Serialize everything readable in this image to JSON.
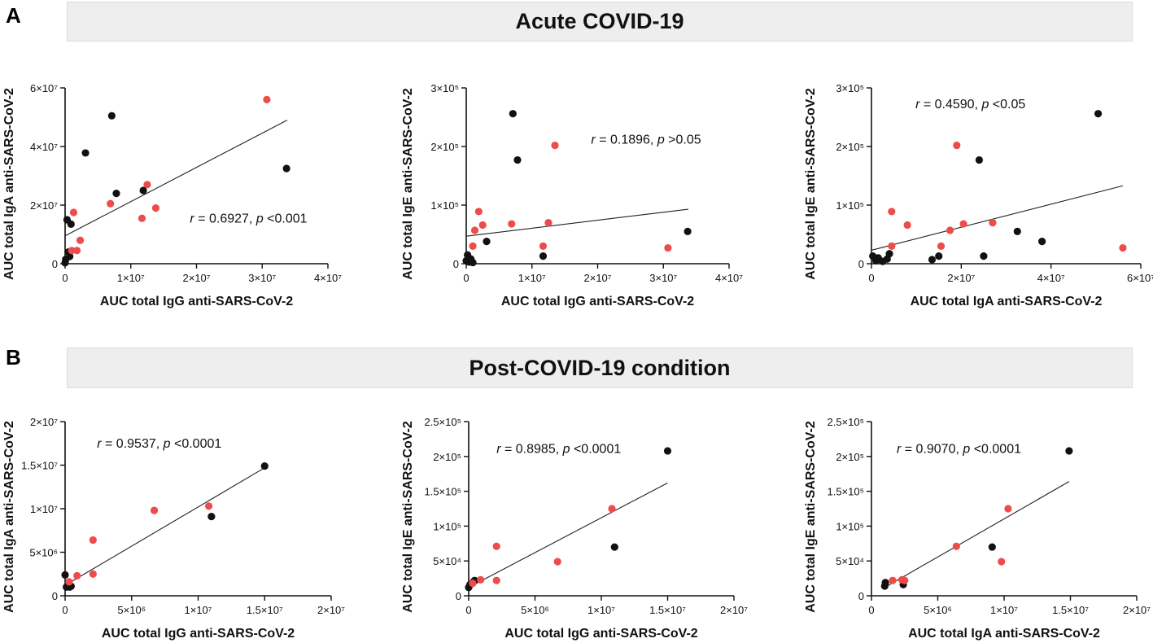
{
  "figure": {
    "panel_a_label": "A",
    "panel_b_label": "B",
    "panel_a_title": "Acute COVID-19",
    "panel_b_title": "Post-COVID-19 condition"
  },
  "colors": {
    "black": "#111111",
    "red": "#ee4b4b",
    "line": "#222222",
    "axis": "#111111"
  },
  "chart_data": [
    {
      "type": "scatter",
      "panel": "A",
      "xlabel": "AUC total IgG anti-SARS-CoV-2",
      "ylabel": "AUC total IgA anti-SARS-CoV-2",
      "xlim": [
        0,
        40000000
      ],
      "ylim": [
        0,
        60000000
      ],
      "xticks": [
        0,
        10000000,
        20000000,
        30000000,
        40000000
      ],
      "xtick_labels": [
        "0",
        "1×10⁷",
        "2×10⁷",
        "3×10⁷",
        "4×10⁷"
      ],
      "yticks": [
        0,
        20000000,
        40000000,
        60000000
      ],
      "ytick_labels": [
        "0",
        "2×10⁷",
        "4×10⁷",
        "6×10⁷"
      ],
      "annotation": "r = 0.6927, p <0.001",
      "annotation_at": [
        19000000,
        14000000
      ],
      "fit": [
        [
          0,
          9500000
        ],
        [
          33800000,
          49000000
        ]
      ],
      "series": [
        {
          "name": "black",
          "points": [
            [
              0,
              300000
            ],
            [
              100000,
              1500000
            ],
            [
              300000,
              15000000
            ],
            [
              500000,
              4000000
            ],
            [
              700000,
              2500000
            ],
            [
              900000,
              13500000
            ],
            [
              3100000,
              37800000
            ],
            [
              7100000,
              50500000
            ],
            [
              7800000,
              24000000
            ],
            [
              11900000,
              25000000
            ],
            [
              33700000,
              32500000
            ]
          ]
        },
        {
          "name": "red",
          "points": [
            [
              1300000,
              17500000
            ],
            [
              1000000,
              4500000
            ],
            [
              1800000,
              4500000
            ],
            [
              2300000,
              8000000
            ],
            [
              6900000,
              20500000
            ],
            [
              11700000,
              15500000
            ],
            [
              12500000,
              27000000
            ],
            [
              13800000,
              19000000
            ],
            [
              30700000,
              56000000
            ]
          ]
        }
      ]
    },
    {
      "type": "scatter",
      "panel": "A",
      "xlabel": "AUC total IgG anti-SARS-CoV-2",
      "ylabel": "AUC total IgE anti-SARS-CoV-2",
      "xlim": [
        0,
        40000000
      ],
      "ylim": [
        0,
        300000
      ],
      "xticks": [
        0,
        10000000,
        20000000,
        30000000,
        40000000
      ],
      "xtick_labels": [
        "0",
        "1×10⁷",
        "2×10⁷",
        "3×10⁷",
        "4×10⁷"
      ],
      "yticks": [
        0,
        100000,
        200000,
        300000
      ],
      "ytick_labels": [
        "0",
        "1×10⁵",
        "2×10⁵",
        "3×10⁵"
      ],
      "annotation": "r = 0.1896, p >0.05",
      "annotation_at": [
        19000000,
        205000
      ],
      "fit": [
        [
          0,
          47000.0
        ],
        [
          33800000,
          93000
        ]
      ],
      "series": [
        {
          "name": "black",
          "points": [
            [
              0,
              5000
            ],
            [
              200000,
              15000
            ],
            [
              400000,
              3000
            ],
            [
              700000,
              8000
            ],
            [
              1000000,
              2000
            ],
            [
              3100000,
              38000
            ],
            [
              7100000,
              256000
            ],
            [
              7800000,
              177000
            ],
            [
              11700000,
              13000
            ],
            [
              33700000,
              55000
            ]
          ]
        },
        {
          "name": "red",
          "points": [
            [
              1000000,
              30000
            ],
            [
              1300000,
              57000
            ],
            [
              1900000,
              89000
            ],
            [
              2500000,
              66000
            ],
            [
              6900000,
              68000
            ],
            [
              11700000,
              30000
            ],
            [
              12500000,
              70000
            ],
            [
              13500000,
              202000
            ],
            [
              30700000,
              27000
            ]
          ]
        }
      ]
    },
    {
      "type": "scatter",
      "panel": "A",
      "xlabel": "AUC total IgA anti-SARS-CoV-2",
      "ylabel": "AUC total IgE anti-SARS-CoV-2",
      "xlim": [
        0,
        60000000
      ],
      "ylim": [
        0,
        300000
      ],
      "xticks": [
        0,
        20000000,
        40000000,
        60000000
      ],
      "xtick_labels": [
        "0",
        "2×10⁷",
        "4×10⁷",
        "6×10⁷"
      ],
      "yticks": [
        0,
        100000,
        200000,
        300000
      ],
      "ytick_labels": [
        "0",
        "1×10⁵",
        "2×10⁵",
        "3×10⁵"
      ],
      "annotation": "r = 0.4590, p <0.05",
      "annotation_at": [
        9800000,
        265000
      ],
      "fit": [
        [
          0,
          23000
        ],
        [
          56000000,
          133000
        ]
      ],
      "series": [
        {
          "name": "black",
          "points": [
            [
              300000,
              13000
            ],
            [
              1000000,
              5000
            ],
            [
              1500000,
              10000
            ],
            [
              2500000,
              4000
            ],
            [
              3500000,
              8000
            ],
            [
              4000000,
              17000
            ],
            [
              13500000,
              7000
            ],
            [
              15000000,
              13000
            ],
            [
              24000000,
              177000
            ],
            [
              25000000,
              13000
            ],
            [
              32500000,
              55000
            ],
            [
              38000000,
              38000
            ],
            [
              50500000,
              256000
            ]
          ]
        },
        {
          "name": "red",
          "points": [
            [
              4500000,
              30000
            ],
            [
              4500000,
              89000
            ],
            [
              8000000,
              66000
            ],
            [
              15500000,
              30000
            ],
            [
              17500000,
              57000
            ],
            [
              19000000,
              202000
            ],
            [
              20500000,
              68000
            ],
            [
              27000000,
              70000
            ],
            [
              56000000,
              27000
            ]
          ]
        }
      ]
    },
    {
      "type": "scatter",
      "panel": "B",
      "xlabel": "AUC total IgG anti-SARS-CoV-2",
      "ylabel": "AUC total IgA anti-SARS-CoV-2",
      "xlim": [
        0,
        20000000
      ],
      "ylim": [
        0,
        20000000
      ],
      "xticks": [
        0,
        5000000,
        10000000,
        15000000,
        20000000
      ],
      "xtick_labels": [
        "0",
        "5×10⁶",
        "1×10⁷",
        "1.5×10⁷",
        "2×10⁷"
      ],
      "yticks": [
        0,
        5000000,
        10000000,
        15000000,
        20000000
      ],
      "ytick_labels": [
        "0",
        "5×10⁶",
        "1×10⁷",
        "1.5×10⁷",
        "2×10⁷"
      ],
      "annotation": "r = 0.9537, p <0.0001",
      "annotation_at": [
        2400000,
        17000000
      ],
      "fit": [
        [
          0,
          1200000
        ],
        [
          15000000,
          14700000
        ]
      ],
      "series": [
        {
          "name": "black",
          "points": [
            [
              0,
              2400000
            ],
            [
              100000,
              1000000
            ],
            [
              350000,
              1000000
            ],
            [
              450000,
              1100000
            ],
            [
              11000000,
              9100000
            ],
            [
              15000000,
              14900000
            ]
          ]
        },
        {
          "name": "red",
          "points": [
            [
              300000,
              1600000
            ],
            [
              900000,
              2300000
            ],
            [
              2100000,
              6400000
            ],
            [
              2100000,
              2500000
            ],
            [
              6700000,
              9800000
            ],
            [
              10800000,
              10300000
            ]
          ]
        }
      ]
    },
    {
      "type": "scatter",
      "panel": "B",
      "xlabel": "AUC total IgG anti-SARS-CoV-2",
      "ylabel": "AUC total IgE anti-SARS-CoV-2",
      "xlim": [
        0,
        20000000
      ],
      "ylim": [
        0,
        250000
      ],
      "xticks": [
        0,
        5000000,
        10000000,
        15000000,
        20000000
      ],
      "xtick_labels": [
        "0",
        "5×10⁶",
        "1×10⁷",
        "1.5×10⁷",
        "2×10⁷"
      ],
      "yticks": [
        0,
        50000,
        100000,
        150000,
        200000,
        250000
      ],
      "ytick_labels": [
        "0",
        "5×10⁴",
        "1×10⁵",
        "1.5×10⁵",
        "2×10⁵",
        "2.5×10⁵"
      ],
      "annotation": "r = 0.8985, p <0.0001",
      "annotation_at": [
        2100000,
        205000
      ],
      "fit": [
        [
          0,
          12000
        ],
        [
          15000000,
          162000
        ]
      ],
      "series": [
        {
          "name": "black",
          "points": [
            [
              0,
              12000
            ],
            [
              100000,
              16000
            ],
            [
              350000,
              20000
            ],
            [
              450000,
              22000
            ],
            [
              11000000,
              70000
            ],
            [
              15000000,
              208000
            ]
          ]
        },
        {
          "name": "red",
          "points": [
            [
              300000,
              18000
            ],
            [
              900000,
              23000
            ],
            [
              2100000,
              71000
            ],
            [
              2100000,
              22000
            ],
            [
              6700000,
              49000
            ],
            [
              10800000,
              125000
            ]
          ]
        }
      ]
    },
    {
      "type": "scatter",
      "panel": "B",
      "xlabel": "AUC total IgA anti-SARS-CoV-2",
      "ylabel": "AUC total IgE anti-SARS-CoV-2",
      "xlim": [
        0,
        20000000
      ],
      "ylim": [
        0,
        250000
      ],
      "xticks": [
        0,
        5000000,
        10000000,
        15000000,
        20000000
      ],
      "xtick_labels": [
        "0",
        "5×10⁶",
        "1×10⁷",
        "1.5×10⁷",
        "2×10⁷"
      ],
      "yticks": [
        0,
        50000,
        100000,
        150000,
        200000,
        250000
      ],
      "ytick_labels": [
        "0",
        "5×10⁴",
        "1×10⁵",
        "1.5×10⁵",
        "2×10⁵",
        "2.5×10⁵"
      ],
      "annotation": "r = 0.9070, p <0.0001",
      "annotation_at": [
        1900000,
        205000
      ],
      "fit": [
        [
          1000000,
          12000
        ],
        [
          14900000,
          164000
        ]
      ],
      "series": [
        {
          "name": "black",
          "points": [
            [
              1000000,
              14000
            ],
            [
              1050000,
              19000
            ],
            [
              2400000,
              16000
            ],
            [
              9100000,
              70000
            ],
            [
              14900000,
              208000
            ]
          ]
        },
        {
          "name": "red",
          "points": [
            [
              1600000,
              22000
            ],
            [
              2300000,
              23000
            ],
            [
              2500000,
              22000
            ],
            [
              6400000,
              71000
            ],
            [
              9800000,
              49000
            ],
            [
              10300000,
              125000
            ]
          ]
        }
      ]
    }
  ]
}
